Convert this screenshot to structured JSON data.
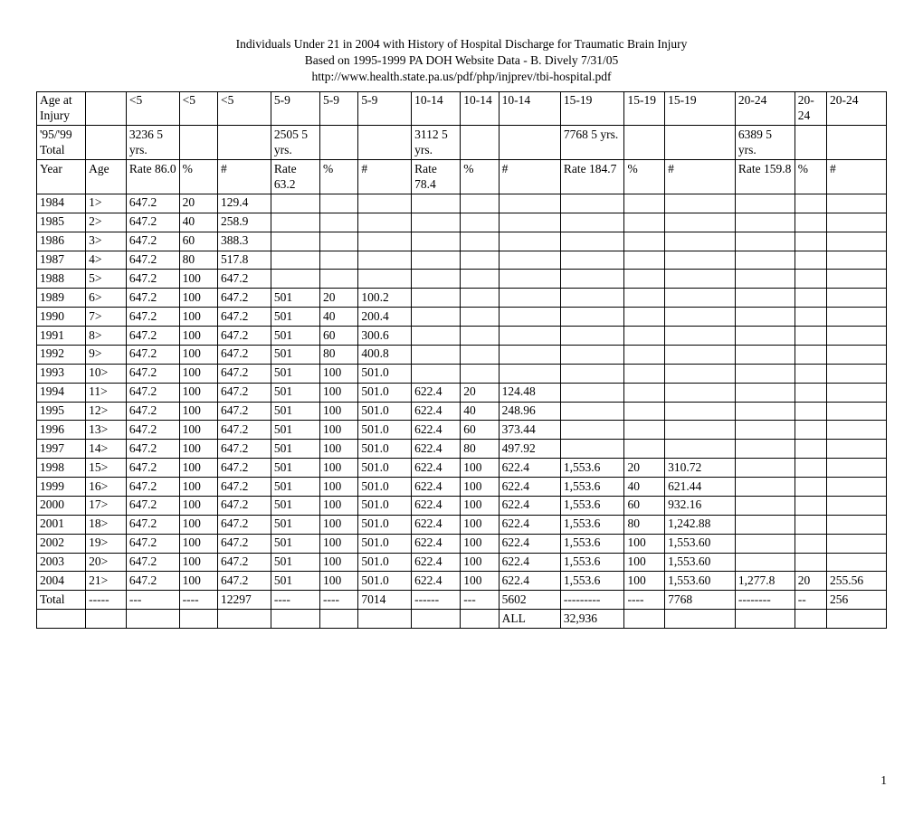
{
  "title": {
    "line1": "Individuals Under 21 in 2004 with History of Hospital Discharge for Traumatic Brain Injury",
    "line2": "Based on 1995-1999 PA DOH Website Data - B. Dively 7/31/05",
    "line3": "http://www.health.state.pa.us/pdf/php/injprev/tbi-hospital.pdf"
  },
  "page_number": "1",
  "table_rows": [
    [
      "Age at Injury",
      "",
      "<5",
      "<5",
      "<5",
      "5-9",
      "5-9",
      "5-9",
      "10-14",
      "10-14",
      "10-14",
      "15-19",
      "15-19",
      "15-19",
      "20-24",
      "20-24",
      "20-24"
    ],
    [
      "'95/'99 Total",
      "",
      "3236 5 yrs.",
      "",
      "",
      "2505 5 yrs.",
      "",
      "",
      "3112 5 yrs.",
      "",
      "",
      "7768 5 yrs.",
      "",
      "",
      "6389 5 yrs.",
      "",
      ""
    ],
    [
      "Year",
      "Age",
      "Rate 86.0",
      "%",
      "#",
      "Rate 63.2",
      "%",
      "#",
      "Rate 78.4",
      "%",
      "#",
      "Rate 184.7",
      "%",
      "#",
      "Rate 159.8",
      "%",
      "#"
    ],
    [
      "1984",
      "1>",
      "647.2",
      "20",
      "129.4",
      "",
      "",
      "",
      "",
      "",
      "",
      "",
      "",
      "",
      "",
      "",
      ""
    ],
    [
      "1985",
      "2>",
      "647.2",
      "40",
      "258.9",
      "",
      "",
      "",
      "",
      "",
      "",
      "",
      "",
      "",
      "",
      "",
      ""
    ],
    [
      "1986",
      "3>",
      "647.2",
      "60",
      "388.3",
      "",
      "",
      "",
      "",
      "",
      "",
      "",
      "",
      "",
      "",
      "",
      ""
    ],
    [
      "1987",
      "4>",
      "647.2",
      "80",
      "517.8",
      "",
      "",
      "",
      "",
      "",
      "",
      "",
      "",
      "",
      "",
      "",
      ""
    ],
    [
      "1988",
      "5>",
      "647.2",
      "100",
      "647.2",
      "",
      "",
      "",
      "",
      "",
      "",
      "",
      "",
      "",
      "",
      "",
      ""
    ],
    [
      "1989",
      "6>",
      "647.2",
      "100",
      "647.2",
      "501",
      "20",
      "100.2",
      "",
      "",
      "",
      "",
      "",
      "",
      "",
      "",
      ""
    ],
    [
      "1990",
      "7>",
      "647.2",
      "100",
      "647.2",
      "501",
      "40",
      "200.4",
      "",
      "",
      "",
      "",
      "",
      "",
      "",
      "",
      ""
    ],
    [
      "1991",
      "8>",
      "647.2",
      "100",
      "647.2",
      "501",
      "60",
      "300.6",
      "",
      "",
      "",
      "",
      "",
      "",
      "",
      "",
      ""
    ],
    [
      "1992",
      "9>",
      "647.2",
      "100",
      "647.2",
      "501",
      "80",
      "400.8",
      "",
      "",
      "",
      "",
      "",
      "",
      "",
      "",
      ""
    ],
    [
      "1993",
      "10>",
      "647.2",
      "100",
      "647.2",
      "501",
      "100",
      "501.0",
      "",
      "",
      "",
      "",
      "",
      "",
      "",
      "",
      ""
    ],
    [
      "1994",
      "11>",
      "647.2",
      "100",
      "647.2",
      "501",
      "100",
      "501.0",
      "622.4",
      "20",
      "124.48",
      "",
      "",
      "",
      "",
      "",
      ""
    ],
    [
      "1995",
      "12>",
      "647.2",
      "100",
      "647.2",
      "501",
      "100",
      "501.0",
      "622.4",
      "40",
      "248.96",
      "",
      "",
      "",
      "",
      "",
      ""
    ],
    [
      "1996",
      "13>",
      "647.2",
      "100",
      "647.2",
      "501",
      "100",
      "501.0",
      "622.4",
      "60",
      "373.44",
      "",
      "",
      "",
      "",
      "",
      ""
    ],
    [
      "1997",
      "14>",
      "647.2",
      "100",
      "647.2",
      "501",
      "100",
      "501.0",
      "622.4",
      "80",
      "497.92",
      "",
      "",
      "",
      "",
      "",
      ""
    ],
    [
      "1998",
      "15>",
      "647.2",
      "100",
      "647.2",
      "501",
      "100",
      "501.0",
      "622.4",
      "100",
      "622.4",
      "1,553.6",
      "20",
      "310.72",
      "",
      "",
      ""
    ],
    [
      "1999",
      "16>",
      "647.2",
      "100",
      "647.2",
      "501",
      "100",
      "501.0",
      "622.4",
      "100",
      "622.4",
      "1,553.6",
      "40",
      "621.44",
      "",
      "",
      ""
    ],
    [
      "2000",
      "17>",
      "647.2",
      "100",
      "647.2",
      "501",
      "100",
      "501.0",
      "622.4",
      "100",
      "622.4",
      "1,553.6",
      "60",
      "932.16",
      "",
      "",
      ""
    ],
    [
      "2001",
      "18>",
      "647.2",
      "100",
      "647.2",
      "501",
      "100",
      "501.0",
      "622.4",
      "100",
      "622.4",
      "1,553.6",
      "80",
      "1,242.88",
      "",
      "",
      ""
    ],
    [
      "2002",
      "19>",
      "647.2",
      "100",
      "647.2",
      "501",
      "100",
      "501.0",
      "622.4",
      "100",
      "622.4",
      "1,553.6",
      "100",
      "1,553.60",
      "",
      "",
      ""
    ],
    [
      "2003",
      "20>",
      "647.2",
      "100",
      "647.2",
      "501",
      "100",
      "501.0",
      "622.4",
      "100",
      "622.4",
      "1,553.6",
      "100",
      "1,553.60",
      "",
      "",
      ""
    ],
    [
      "2004",
      "21>",
      "647.2",
      "100",
      "647.2",
      "501",
      "100",
      "501.0",
      "622.4",
      "100",
      "622.4",
      "1,553.6",
      "100",
      "1,553.60",
      "1,277.8",
      "20",
      "255.56"
    ],
    [
      "Total",
      "-----",
      "---",
      "----",
      "12297",
      "----",
      "----",
      "7014",
      "------",
      "---",
      "5602",
      "---------",
      "----",
      "7768",
      "--------",
      "--",
      "256"
    ],
    [
      "",
      "",
      "",
      "",
      "",
      "",
      "",
      "",
      "",
      "",
      "ALL",
      "32,936",
      "",
      "",
      "",
      "",
      ""
    ]
  ]
}
